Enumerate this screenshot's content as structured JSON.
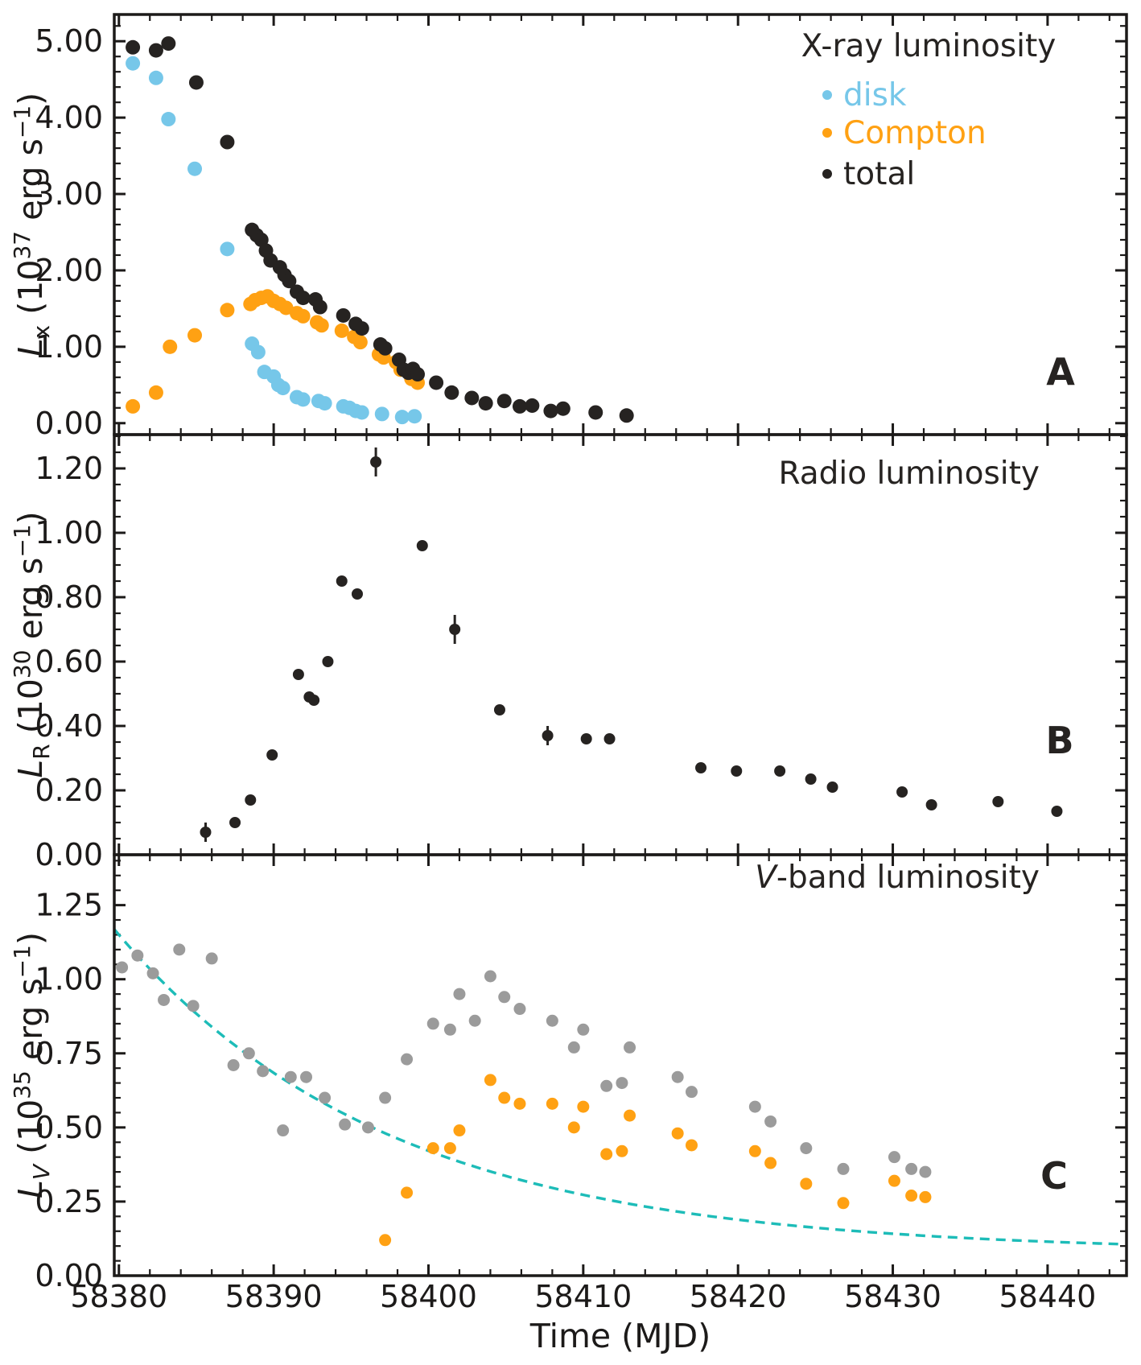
{
  "figure": {
    "xlabel": "Time (MJD)",
    "x_ticks": [
      "58380",
      "58390",
      "58400",
      "58410",
      "58420",
      "58430",
      "58440"
    ],
    "x_tick_values": [
      58380,
      58390,
      58400,
      58410,
      58420,
      58430,
      58440
    ],
    "x_minor_step": 2,
    "x_range": [
      58379.7,
      58445.1
    ],
    "background": "#ffffff",
    "frame_color": "#1c1a19"
  },
  "chart_data": [
    {
      "type": "scatter",
      "panel_label": "A",
      "legend": {
        "title": "X-ray luminosity",
        "entries": [
          {
            "label": "disk",
            "color": "#76c7e9"
          },
          {
            "label": "Compton",
            "color": "#ffa113"
          },
          {
            "label": "total",
            "color": "#262321"
          }
        ]
      },
      "ylabel": {
        "letter": "L",
        "sub": "x",
        "sub_italic": false,
        "power": "37",
        "unit": " erg s",
        "sup": "−1",
        "plain": "Lx (10^37 erg s^-1)"
      },
      "y_tick_values": [
        0,
        1,
        2,
        3,
        4,
        5
      ],
      "y_tick_labels": [
        "0.00",
        "1.00",
        "2.00",
        "3.00",
        "4.00",
        "5.00"
      ],
      "y_minor_step": 0.2,
      "y_range": [
        -0.15,
        5.35
      ],
      "series": [
        {
          "name": "disk",
          "color": "#76c7e9",
          "marker_radius": 9,
          "points": [
            [
              58380.9,
              4.71
            ],
            [
              58382.4,
              4.52
            ],
            [
              58383.2,
              3.98
            ],
            [
              58384.9,
              3.33
            ],
            [
              58387.0,
              2.28
            ],
            [
              58388.6,
              1.04
            ],
            [
              58389.0,
              0.93
            ],
            [
              58389.4,
              0.67
            ],
            [
              58390.0,
              0.61
            ],
            [
              58390.3,
              0.5
            ],
            [
              58390.6,
              0.46
            ],
            [
              58391.5,
              0.34
            ],
            [
              58391.9,
              0.31
            ],
            [
              58392.9,
              0.29
            ],
            [
              58393.3,
              0.26
            ],
            [
              58394.5,
              0.22
            ],
            [
              58394.9,
              0.2
            ],
            [
              58395.3,
              0.16
            ],
            [
              58395.7,
              0.14
            ],
            [
              58397.0,
              0.12
            ],
            [
              58398.3,
              0.08
            ],
            [
              58399.1,
              0.09
            ]
          ]
        },
        {
          "name": "Compton",
          "color": "#ffa113",
          "marker_radius": 9,
          "points": [
            [
              58380.9,
              0.22
            ],
            [
              58382.4,
              0.4
            ],
            [
              58383.3,
              1.0
            ],
            [
              58384.9,
              1.15
            ],
            [
              58387.0,
              1.48
            ],
            [
              58388.5,
              1.56
            ],
            [
              58388.8,
              1.61
            ],
            [
              58389.2,
              1.64
            ],
            [
              58389.6,
              1.66
            ],
            [
              58390.0,
              1.6
            ],
            [
              58390.4,
              1.56
            ],
            [
              58390.8,
              1.51
            ],
            [
              58391.5,
              1.44
            ],
            [
              58391.9,
              1.4
            ],
            [
              58392.8,
              1.32
            ],
            [
              58393.1,
              1.28
            ],
            [
              58394.4,
              1.21
            ],
            [
              58395.2,
              1.13
            ],
            [
              58395.6,
              1.06
            ],
            [
              58396.8,
              0.9
            ],
            [
              58397.1,
              0.86
            ],
            [
              58397.9,
              0.8
            ],
            [
              58398.2,
              0.7
            ],
            [
              58398.9,
              0.58
            ],
            [
              58399.3,
              0.53
            ]
          ]
        },
        {
          "name": "total",
          "color": "#262321",
          "marker_radius": 9,
          "points": [
            [
              58380.9,
              4.92
            ],
            [
              58382.4,
              4.88
            ],
            [
              58383.2,
              4.97
            ],
            [
              58385.0,
              4.46
            ],
            [
              58387.0,
              3.68
            ],
            [
              58388.6,
              2.53
            ],
            [
              58388.9,
              2.46
            ],
            [
              58389.2,
              2.4
            ],
            [
              58389.5,
              2.26
            ],
            [
              58389.8,
              2.13
            ],
            [
              58390.4,
              2.04
            ],
            [
              58390.7,
              1.94
            ],
            [
              58391.0,
              1.86
            ],
            [
              58391.5,
              1.72
            ],
            [
              58391.9,
              1.64
            ],
            [
              58392.7,
              1.62
            ],
            [
              58393.0,
              1.52
            ],
            [
              58394.5,
              1.41
            ],
            [
              58395.3,
              1.3
            ],
            [
              58395.7,
              1.24
            ],
            [
              58396.9,
              1.03
            ],
            [
              58397.2,
              0.98
            ],
            [
              58398.1,
              0.83
            ],
            [
              58398.4,
              0.7
            ],
            [
              58398.7,
              0.66
            ],
            [
              58399.0,
              0.71
            ],
            [
              58399.3,
              0.64
            ],
            [
              58400.5,
              0.53
            ],
            [
              58401.5,
              0.4
            ],
            [
              58402.8,
              0.33
            ],
            [
              58403.7,
              0.26
            ],
            [
              58404.9,
              0.29
            ],
            [
              58405.9,
              0.22
            ],
            [
              58406.7,
              0.23,
              0.05
            ],
            [
              58407.9,
              0.16
            ],
            [
              58408.7,
              0.19,
              0.05
            ],
            [
              58410.8,
              0.14,
              0.04
            ],
            [
              58412.8,
              0.1
            ]
          ]
        }
      ]
    },
    {
      "type": "scatter",
      "panel_label": "B",
      "title": "Radio luminosity",
      "ylabel": {
        "letter": "L",
        "sub": "R",
        "sub_italic": false,
        "power": "30",
        "unit": " erg s",
        "sup": "−1",
        "plain": "LR (10^30 erg s^-1)"
      },
      "y_tick_values": [
        0,
        0.2,
        0.4,
        0.6,
        0.8,
        1.0,
        1.2
      ],
      "y_tick_labels": [
        "0.00",
        "0.20",
        "0.40",
        "0.60",
        "0.80",
        "1.00",
        "1.20"
      ],
      "y_minor_step": 0.05,
      "y_range": [
        0,
        1.305
      ],
      "series": [
        {
          "name": "radio",
          "color": "#262321",
          "marker_radius": 7,
          "points": [
            [
              58385.6,
              0.07,
              0.02
            ],
            [
              58387.5,
              0.1
            ],
            [
              58388.5,
              0.17
            ],
            [
              58389.9,
              0.31
            ],
            [
              58391.6,
              0.56
            ],
            [
              58392.3,
              0.49
            ],
            [
              58392.6,
              0.48
            ],
            [
              58393.5,
              0.6
            ],
            [
              58394.4,
              0.85
            ],
            [
              58395.4,
              0.81
            ],
            [
              58396.6,
              1.22,
              0.035
            ],
            [
              58399.6,
              0.96
            ],
            [
              58401.7,
              0.7,
              0.035
            ],
            [
              58404.6,
              0.45
            ],
            [
              58407.7,
              0.37,
              0.02
            ],
            [
              58410.2,
              0.36
            ],
            [
              58411.7,
              0.36
            ],
            [
              58417.6,
              0.27
            ],
            [
              58419.9,
              0.26
            ],
            [
              58422.7,
              0.26
            ],
            [
              58424.7,
              0.235
            ],
            [
              58426.1,
              0.21
            ],
            [
              58430.6,
              0.195
            ],
            [
              58432.5,
              0.155
            ],
            [
              58436.8,
              0.165
            ],
            [
              58440.6,
              0.135
            ]
          ]
        }
      ]
    },
    {
      "type": "scatter",
      "panel_label": "C",
      "title": "V-band luminosity",
      "title_italic_prefix": "V",
      "title_rest": "-band luminosity",
      "ylabel": {
        "letter": "L",
        "sub": "V",
        "sub_italic": true,
        "power": "35",
        "unit": " erg s",
        "sup": "−1",
        "plain": "LV (10^35 erg s^-1)"
      },
      "y_tick_values": [
        0,
        0.25,
        0.5,
        0.75,
        1.0,
        1.25
      ],
      "y_tick_labels": [
        "0.00",
        "0.25",
        "0.50",
        "0.75",
        "1.00",
        "1.25"
      ],
      "y_minor_step": 0.05,
      "y_range": [
        0,
        1.42
      ],
      "series": [
        {
          "name": "vband-observed",
          "color": "#9b9b9b",
          "marker_radius": 7.5,
          "points": [
            [
              58380.2,
              1.04
            ],
            [
              58381.2,
              1.08
            ],
            [
              58382.2,
              1.02
            ],
            [
              58382.9,
              0.93
            ],
            [
              58383.9,
              1.1
            ],
            [
              58384.8,
              0.91
            ],
            [
              58386.0,
              1.07
            ],
            [
              58387.4,
              0.71
            ],
            [
              58388.4,
              0.75
            ],
            [
              58389.3,
              0.69
            ],
            [
              58390.6,
              0.49
            ],
            [
              58391.1,
              0.67
            ],
            [
              58392.1,
              0.67
            ],
            [
              58393.3,
              0.6
            ],
            [
              58394.6,
              0.51
            ],
            [
              58396.1,
              0.5
            ],
            [
              58397.2,
              0.6
            ],
            [
              58398.6,
              0.73
            ],
            [
              58400.3,
              0.85
            ],
            [
              58401.4,
              0.83
            ],
            [
              58402.0,
              0.95
            ],
            [
              58403.0,
              0.86
            ],
            [
              58404.0,
              1.01
            ],
            [
              58404.9,
              0.94
            ],
            [
              58405.9,
              0.9
            ],
            [
              58408.0,
              0.86
            ],
            [
              58409.4,
              0.77
            ],
            [
              58410.0,
              0.83
            ],
            [
              58411.5,
              0.64
            ],
            [
              58412.5,
              0.65
            ],
            [
              58413.0,
              0.77
            ],
            [
              58416.1,
              0.67
            ],
            [
              58417.0,
              0.62
            ],
            [
              58421.1,
              0.57
            ],
            [
              58422.1,
              0.52
            ],
            [
              58424.4,
              0.43
            ],
            [
              58426.8,
              0.36
            ],
            [
              58430.1,
              0.4
            ],
            [
              58431.2,
              0.36
            ],
            [
              58432.1,
              0.35
            ]
          ]
        },
        {
          "name": "vband-excess",
          "color": "#ffa113",
          "marker_radius": 7.5,
          "points": [
            [
              58397.2,
              0.12
            ],
            [
              58398.6,
              0.28
            ],
            [
              58400.3,
              0.43
            ],
            [
              58401.4,
              0.43
            ],
            [
              58402.0,
              0.49
            ],
            [
              58404.0,
              0.66
            ],
            [
              58404.9,
              0.6
            ],
            [
              58405.9,
              0.58
            ],
            [
              58408.0,
              0.58
            ],
            [
              58409.4,
              0.5
            ],
            [
              58410.0,
              0.57
            ],
            [
              58411.5,
              0.41
            ],
            [
              58412.5,
              0.42
            ],
            [
              58413.0,
              0.54
            ],
            [
              58416.1,
              0.48
            ],
            [
              58417.0,
              0.44
            ],
            [
              58421.1,
              0.42
            ],
            [
              58422.1,
              0.38
            ],
            [
              58424.4,
              0.31
            ],
            [
              58426.8,
              0.245
            ],
            [
              58430.1,
              0.32
            ],
            [
              58431.2,
              0.27
            ],
            [
              58432.1,
              0.265
            ]
          ]
        }
      ],
      "model_curve": {
        "name": "decay-model",
        "color": "#1dbcb8",
        "style": "dashed",
        "amplitude": 1.07,
        "tau_days": 17.5,
        "offset": 0.08,
        "t0": 58380
      }
    }
  ]
}
